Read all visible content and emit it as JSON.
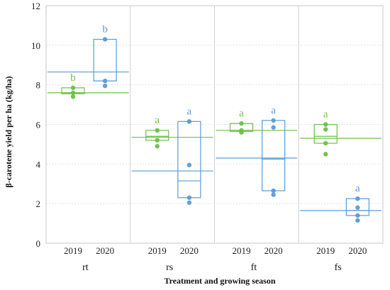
{
  "chart_data": {
    "type": "box",
    "title": "",
    "xlabel": "Treatment and growing season",
    "ylabel": "β-carotene yield per ha (kg/ha)",
    "ylim": [
      0,
      12
    ],
    "yticks": [
      0,
      2,
      4,
      6,
      8,
      10,
      12
    ],
    "grid": true,
    "colors": {
      "2019": "#6cc04a",
      "2020": "#5b9bd5"
    },
    "groups": [
      "rt",
      "rs",
      "ft",
      "fs"
    ],
    "group_means": {
      "rt": {
        "2019": 7.6,
        "2020": 8.65
      },
      "rs": {
        "2019": 5.35,
        "2020": 3.65
      },
      "ft": {
        "2019": 5.7,
        "2020": 4.3
      },
      "fs": {
        "2019": 5.3,
        "2020": 1.65
      }
    },
    "boxes": [
      {
        "group": "rt",
        "season": "2019",
        "q1": 7.55,
        "median": 7.6,
        "q3": 7.85,
        "points": [
          7.4,
          7.6,
          7.85
        ],
        "letter": "b"
      },
      {
        "group": "rt",
        "season": "2020",
        "q1": 8.2,
        "median": 8.2,
        "q3": 10.3,
        "points": [
          7.95,
          8.2,
          10.3
        ],
        "letter": "b"
      },
      {
        "group": "rs",
        "season": "2019",
        "q1": 5.2,
        "median": 5.4,
        "q3": 5.7,
        "points": [
          4.9,
          5.2,
          5.7
        ],
        "letter": "a"
      },
      {
        "group": "rs",
        "season": "2020",
        "q1": 2.3,
        "median": 3.15,
        "q3": 6.15,
        "points": [
          2.05,
          2.3,
          3.95,
          6.15
        ],
        "letter": "a"
      },
      {
        "group": "ft",
        "season": "2019",
        "q1": 5.65,
        "median": 5.7,
        "q3": 6.05,
        "points": [
          5.6,
          5.7,
          6.05
        ],
        "letter": "a"
      },
      {
        "group": "ft",
        "season": "2020",
        "q1": 2.65,
        "median": 4.25,
        "q3": 6.2,
        "points": [
          2.45,
          2.65,
          5.85,
          6.2
        ],
        "letter": "a"
      },
      {
        "group": "fs",
        "season": "2019",
        "q1": 5.05,
        "median": 5.4,
        "q3": 6.0,
        "points": [
          4.5,
          5.05,
          5.75,
          6.0
        ],
        "letter": "a"
      },
      {
        "group": "fs",
        "season": "2020",
        "q1": 1.4,
        "median": 1.65,
        "q3": 2.25,
        "points": [
          1.15,
          1.4,
          1.8,
          2.25
        ],
        "letter": "a"
      }
    ]
  }
}
